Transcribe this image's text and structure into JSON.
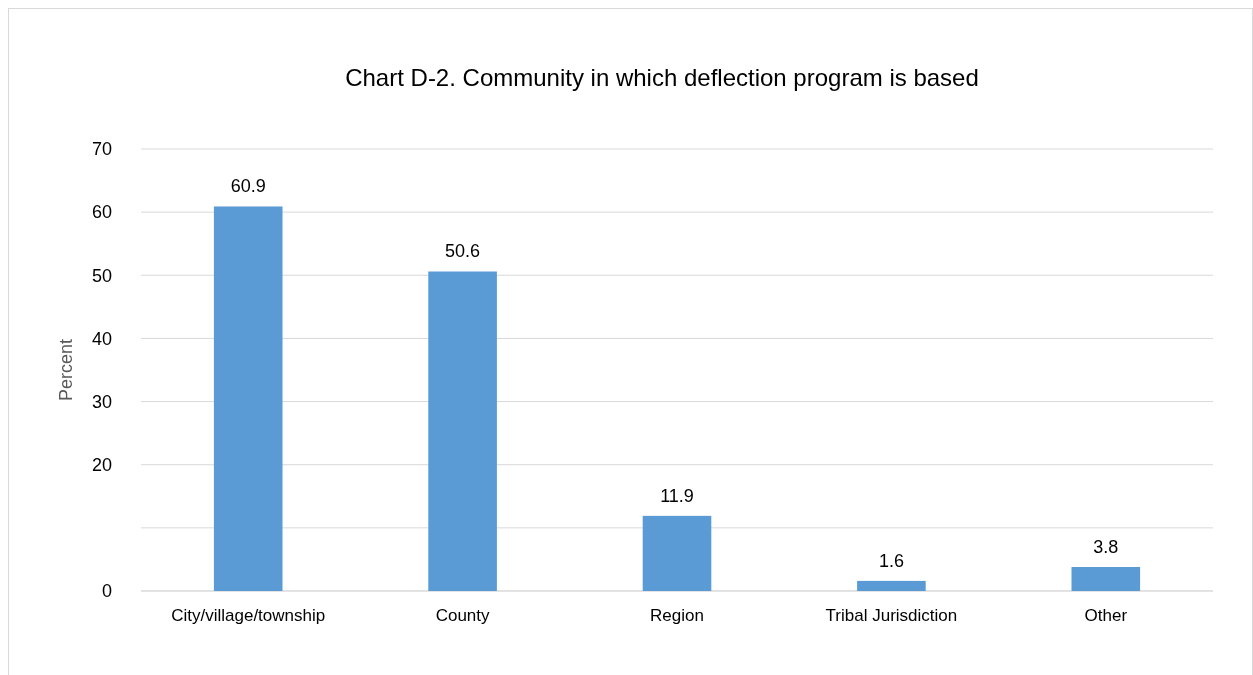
{
  "chart_data": {
    "type": "bar",
    "title": "Chart D-2. Community in which deflection program is based",
    "ylabel": "Percent",
    "categories": [
      "City/village/township",
      "County",
      "Region",
      "Tribal Jurisdiction",
      "Other"
    ],
    "values": [
      60.9,
      50.6,
      11.9,
      1.6,
      3.8
    ],
    "color": "#5b9bd5",
    "ylim": [
      0,
      70
    ],
    "yticks": [
      0,
      {
        "value": 10,
        "label": null
      },
      20,
      30,
      40,
      50,
      60,
      70
    ],
    "grid": "y",
    "data_labels": true
  }
}
